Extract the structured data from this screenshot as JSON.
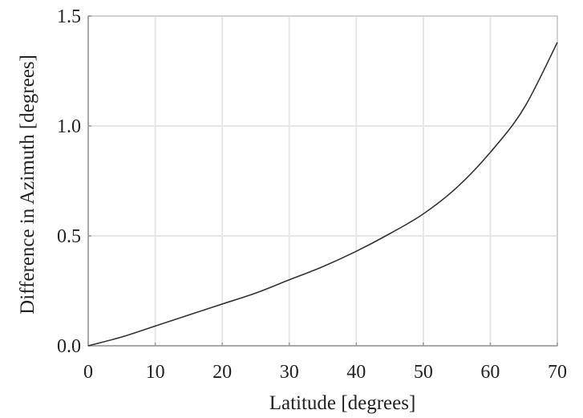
{
  "chart_data": {
    "type": "line",
    "title": "",
    "xlabel": "Latitude [degrees]",
    "ylabel": "Difference in Azimuth [degrees]",
    "xlim": [
      0,
      70
    ],
    "ylim": [
      0,
      1.5
    ],
    "xticks": [
      "0",
      "10",
      "20",
      "30",
      "40",
      "50",
      "60",
      "70"
    ],
    "yticks": [
      "0.0",
      "0.5",
      "1.0",
      "1.5"
    ],
    "grid": true,
    "series": [
      {
        "x": [
          0,
          5,
          10,
          15,
          20,
          25,
          30,
          35,
          40,
          45,
          50,
          55,
          60,
          65,
          70
        ],
        "y": [
          0.0,
          0.04,
          0.09,
          0.14,
          0.19,
          0.24,
          0.3,
          0.36,
          0.43,
          0.51,
          0.6,
          0.72,
          0.88,
          1.08,
          1.38
        ]
      }
    ]
  },
  "colors": {
    "line": "#333333",
    "grid": "#e7e7e7",
    "frame": "#d2d2d2",
    "text": "#222222"
  }
}
